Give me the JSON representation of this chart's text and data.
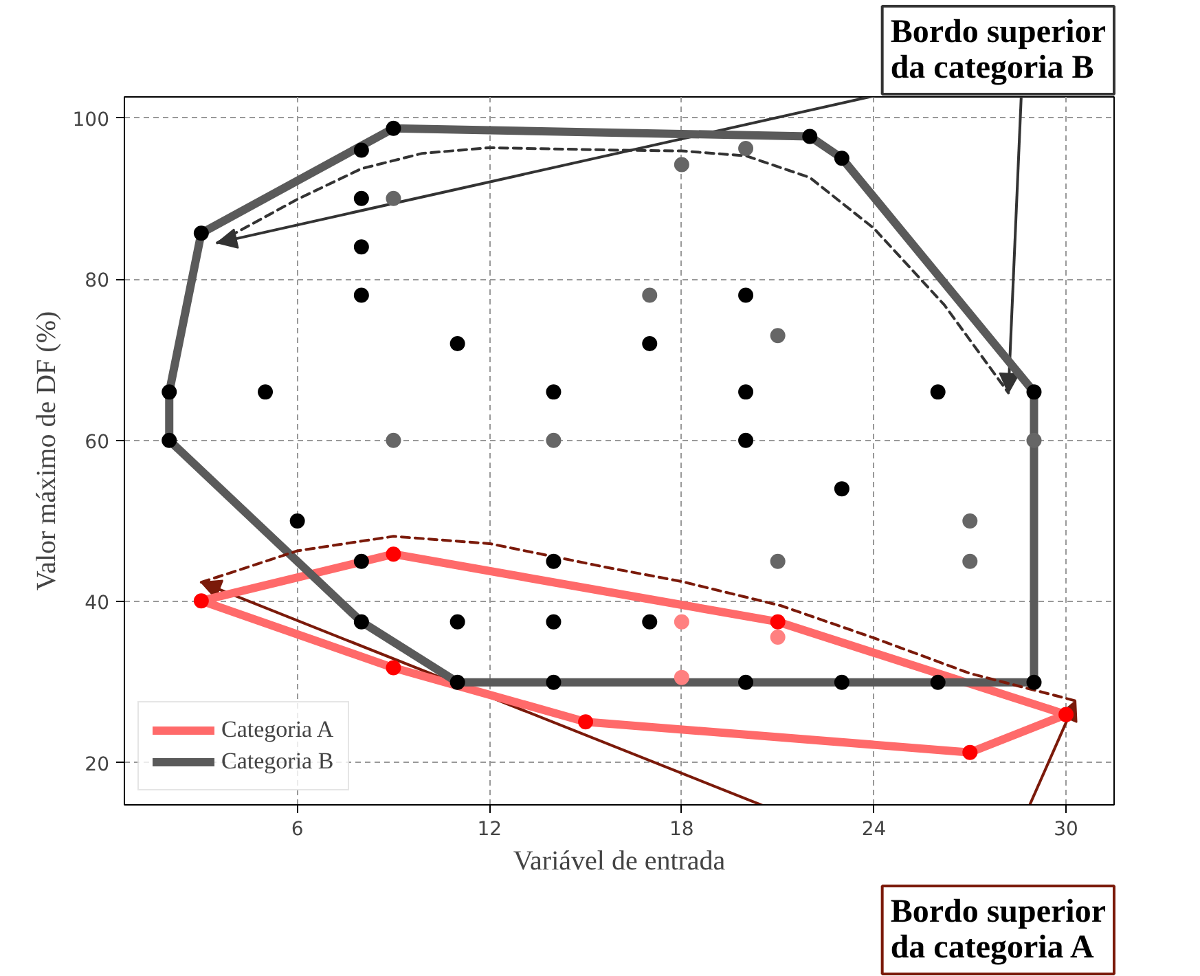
{
  "chart_data": {
    "type": "scatter",
    "xlabel": "Variável de entrada",
    "ylabel": "Valor máximo de DF (%)",
    "xlim": [
      0.6,
      31.5
    ],
    "ylim": [
      14.8,
      102.6
    ],
    "xticks": [
      6,
      12,
      18,
      24,
      30
    ],
    "yticks": [
      20,
      40,
      60,
      80,
      100
    ],
    "grid": true,
    "legend": "bottom left",
    "series": [
      {
        "color": "#000000",
        "marker": "circle",
        "x": [
          8,
          9,
          3,
          8,
          8,
          8,
          11,
          2,
          5,
          14,
          2,
          22,
          23,
          20,
          17,
          20,
          26,
          29,
          20,
          6,
          8,
          14,
          8,
          11,
          14,
          11,
          14,
          23,
          17,
          20,
          23,
          26,
          29
        ],
        "values": [
          96,
          98.7,
          85.7,
          90,
          84,
          78,
          72,
          66,
          66,
          66,
          60,
          97.7,
          95,
          78,
          72,
          66,
          66,
          66,
          60,
          50,
          45,
          45,
          37.5,
          37.5,
          37.5,
          30,
          30,
          54,
          37.5,
          30,
          30,
          30,
          30
        ]
      },
      {
        "color": "#666666",
        "marker": "circle",
        "x": [
          9,
          9,
          14,
          18,
          20,
          17,
          21,
          29,
          27,
          27,
          21
        ],
        "values": [
          90,
          60,
          60,
          94.2,
          96.2,
          78,
          73,
          60,
          50,
          45,
          45
        ]
      },
      {
        "color": "#ff0000",
        "marker": "circle",
        "x": [
          3,
          9,
          9,
          15,
          21,
          27,
          30
        ],
        "values": [
          40.1,
          45.9,
          31.8,
          25.1,
          37.5,
          21.3,
          26
        ]
      },
      {
        "color": "#ff8080",
        "marker": "circle",
        "x": [
          18,
          18,
          21
        ],
        "values": [
          37.5,
          30.6,
          35.6
        ]
      },
      {
        "type": "line",
        "name": "Categoria A",
        "color": "#ff6a6a",
        "marker": "none",
        "line_style": "solid",
        "x": [
          3,
          9,
          21,
          30
        ],
        "values": [
          40.1,
          45.9,
          37.5,
          26
        ]
      },
      {
        "type": "line",
        "color": "#ff6a6a",
        "marker": "none",
        "line_style": "solid",
        "x": [
          3,
          9,
          15,
          27,
          30
        ],
        "values": [
          40.1,
          31.8,
          25.1,
          21.3,
          26
        ]
      },
      {
        "type": "line",
        "name": "Categoria B",
        "color": "#5a5a5a",
        "marker": "none",
        "line_style": "solid",
        "x": [
          2,
          2,
          3,
          9,
          22,
          23,
          29,
          29
        ],
        "values": [
          60,
          66,
          85.7,
          98.7,
          97.7,
          95,
          66,
          30
        ]
      },
      {
        "type": "line",
        "color": "#5a5a5a",
        "marker": "none",
        "line_style": "solid",
        "x": [
          2,
          8,
          11,
          29
        ],
        "values": [
          60,
          37.5,
          30,
          30
        ]
      },
      {
        "type": "line",
        "color": "#333333",
        "marker": "none",
        "line_style": "dashed",
        "x": [
          3.5,
          6,
          8,
          9.9,
          12,
          16,
          18,
          20,
          22,
          24,
          26.2,
          28.2
        ],
        "values": [
          84.5,
          89.9,
          93.7,
          95.6,
          96.3,
          96,
          95.9,
          95.3,
          92.6,
          86.3,
          76.8,
          65.9
        ]
      },
      {
        "type": "line",
        "color": "#7b1a0a",
        "marker": "none",
        "line_style": "dashed",
        "x": [
          3,
          6,
          9,
          12,
          15.6,
          18,
          21.1,
          24,
          27,
          30.3
        ],
        "values": [
          42.4,
          46.3,
          48.1,
          47.2,
          44.3,
          42.5,
          39.5,
          35.5,
          31.1,
          27.7
        ]
      }
    ],
    "annotations": [
      {
        "text": "Bordo superior da categoria B",
        "x": 28.2,
        "y": 65.9
      },
      {
        "text": "Bordo superior da categoria A",
        "x": 30.3,
        "y": 27.7
      }
    ]
  }
}
